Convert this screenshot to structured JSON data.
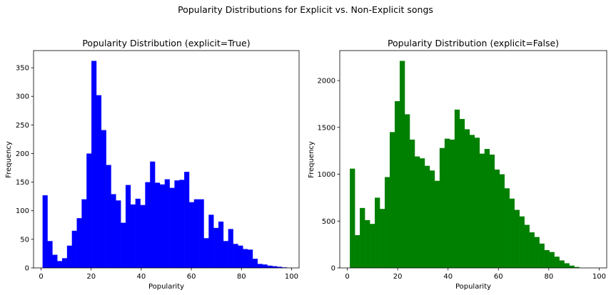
{
  "figure": {
    "suptitle": "Popularity Distributions for Explicit vs. Non-Explicit songs"
  },
  "chart_data": [
    {
      "type": "bar",
      "title": "Popularity Distribution (explicit=True)",
      "xlabel": "Popularity",
      "ylabel": "Frequency",
      "color": "#0000ff",
      "xlim": [
        -3,
        103
      ],
      "ylim": [
        0,
        380
      ],
      "xticks": [
        0,
        20,
        40,
        60,
        80,
        100
      ],
      "yticks": [
        0,
        50,
        100,
        150,
        200,
        250,
        300,
        350
      ],
      "bin_edges": [
        0.6,
        2.55,
        4.5,
        6.45,
        8.4,
        10.35,
        12.3,
        14.25,
        16.2,
        18.15,
        20.1,
        22.05,
        24.0,
        25.95,
        27.9,
        29.85,
        31.8,
        33.75,
        35.7,
        37.65,
        39.6,
        41.55,
        43.5,
        45.45,
        47.4,
        49.35,
        51.3,
        53.25,
        55.2,
        57.15,
        59.1,
        61.05,
        63.0,
        64.95,
        66.9,
        68.85,
        70.8,
        72.75,
        74.7,
        76.65,
        78.6,
        80.55,
        82.5,
        84.45,
        86.4,
        88.35,
        90.3,
        92.25,
        94.2,
        96.15,
        98.1
      ],
      "values": [
        127,
        47,
        23,
        12,
        17,
        39,
        65,
        87,
        120,
        200,
        362,
        302,
        241,
        180,
        129,
        118,
        79,
        145,
        111,
        121,
        110,
        150,
        186,
        149,
        146,
        155,
        140,
        153,
        154,
        168,
        115,
        120,
        120,
        52,
        93,
        70,
        81,
        47,
        68,
        42,
        39,
        33,
        32,
        16,
        7,
        6,
        4,
        3,
        2,
        1
      ]
    },
    {
      "type": "bar",
      "title": "Popularity Distribution (explicit=False)",
      "xlabel": "Popularity",
      "ylabel": "Frequency",
      "color": "#008000",
      "xlim": [
        -3,
        103
      ],
      "ylim": [
        0,
        2320
      ],
      "xticks": [
        0,
        20,
        40,
        60,
        80,
        100
      ],
      "yticks": [
        0,
        500,
        1000,
        1500,
        2000
      ],
      "bin_edges": [
        1.0,
        2.98,
        4.96,
        6.94,
        8.92,
        10.9,
        12.88,
        14.86,
        16.84,
        18.82,
        20.8,
        22.78,
        24.76,
        26.74,
        28.72,
        30.7,
        32.68,
        34.66,
        36.64,
        38.62,
        40.6,
        42.58,
        44.56,
        46.54,
        48.52,
        50.5,
        52.48,
        54.46,
        56.44,
        58.42,
        60.4,
        62.38,
        64.36,
        66.34,
        68.32,
        70.3,
        72.28,
        74.26,
        76.24,
        78.22,
        80.2,
        82.18,
        84.16,
        86.14,
        88.12,
        90.1,
        92.08,
        94.06,
        96.04,
        98.02,
        100.0
      ],
      "values": [
        1060,
        350,
        640,
        510,
        470,
        750,
        630,
        970,
        1450,
        1780,
        2210,
        1640,
        1370,
        1190,
        1170,
        1090,
        1040,
        930,
        1280,
        1380,
        1370,
        1690,
        1590,
        1480,
        1420,
        1390,
        1220,
        1270,
        1210,
        1050,
        1000,
        850,
        740,
        620,
        550,
        460,
        380,
        330,
        260,
        190,
        170,
        120,
        80,
        50,
        25,
        10,
        0,
        0,
        0,
        0
      ]
    }
  ]
}
